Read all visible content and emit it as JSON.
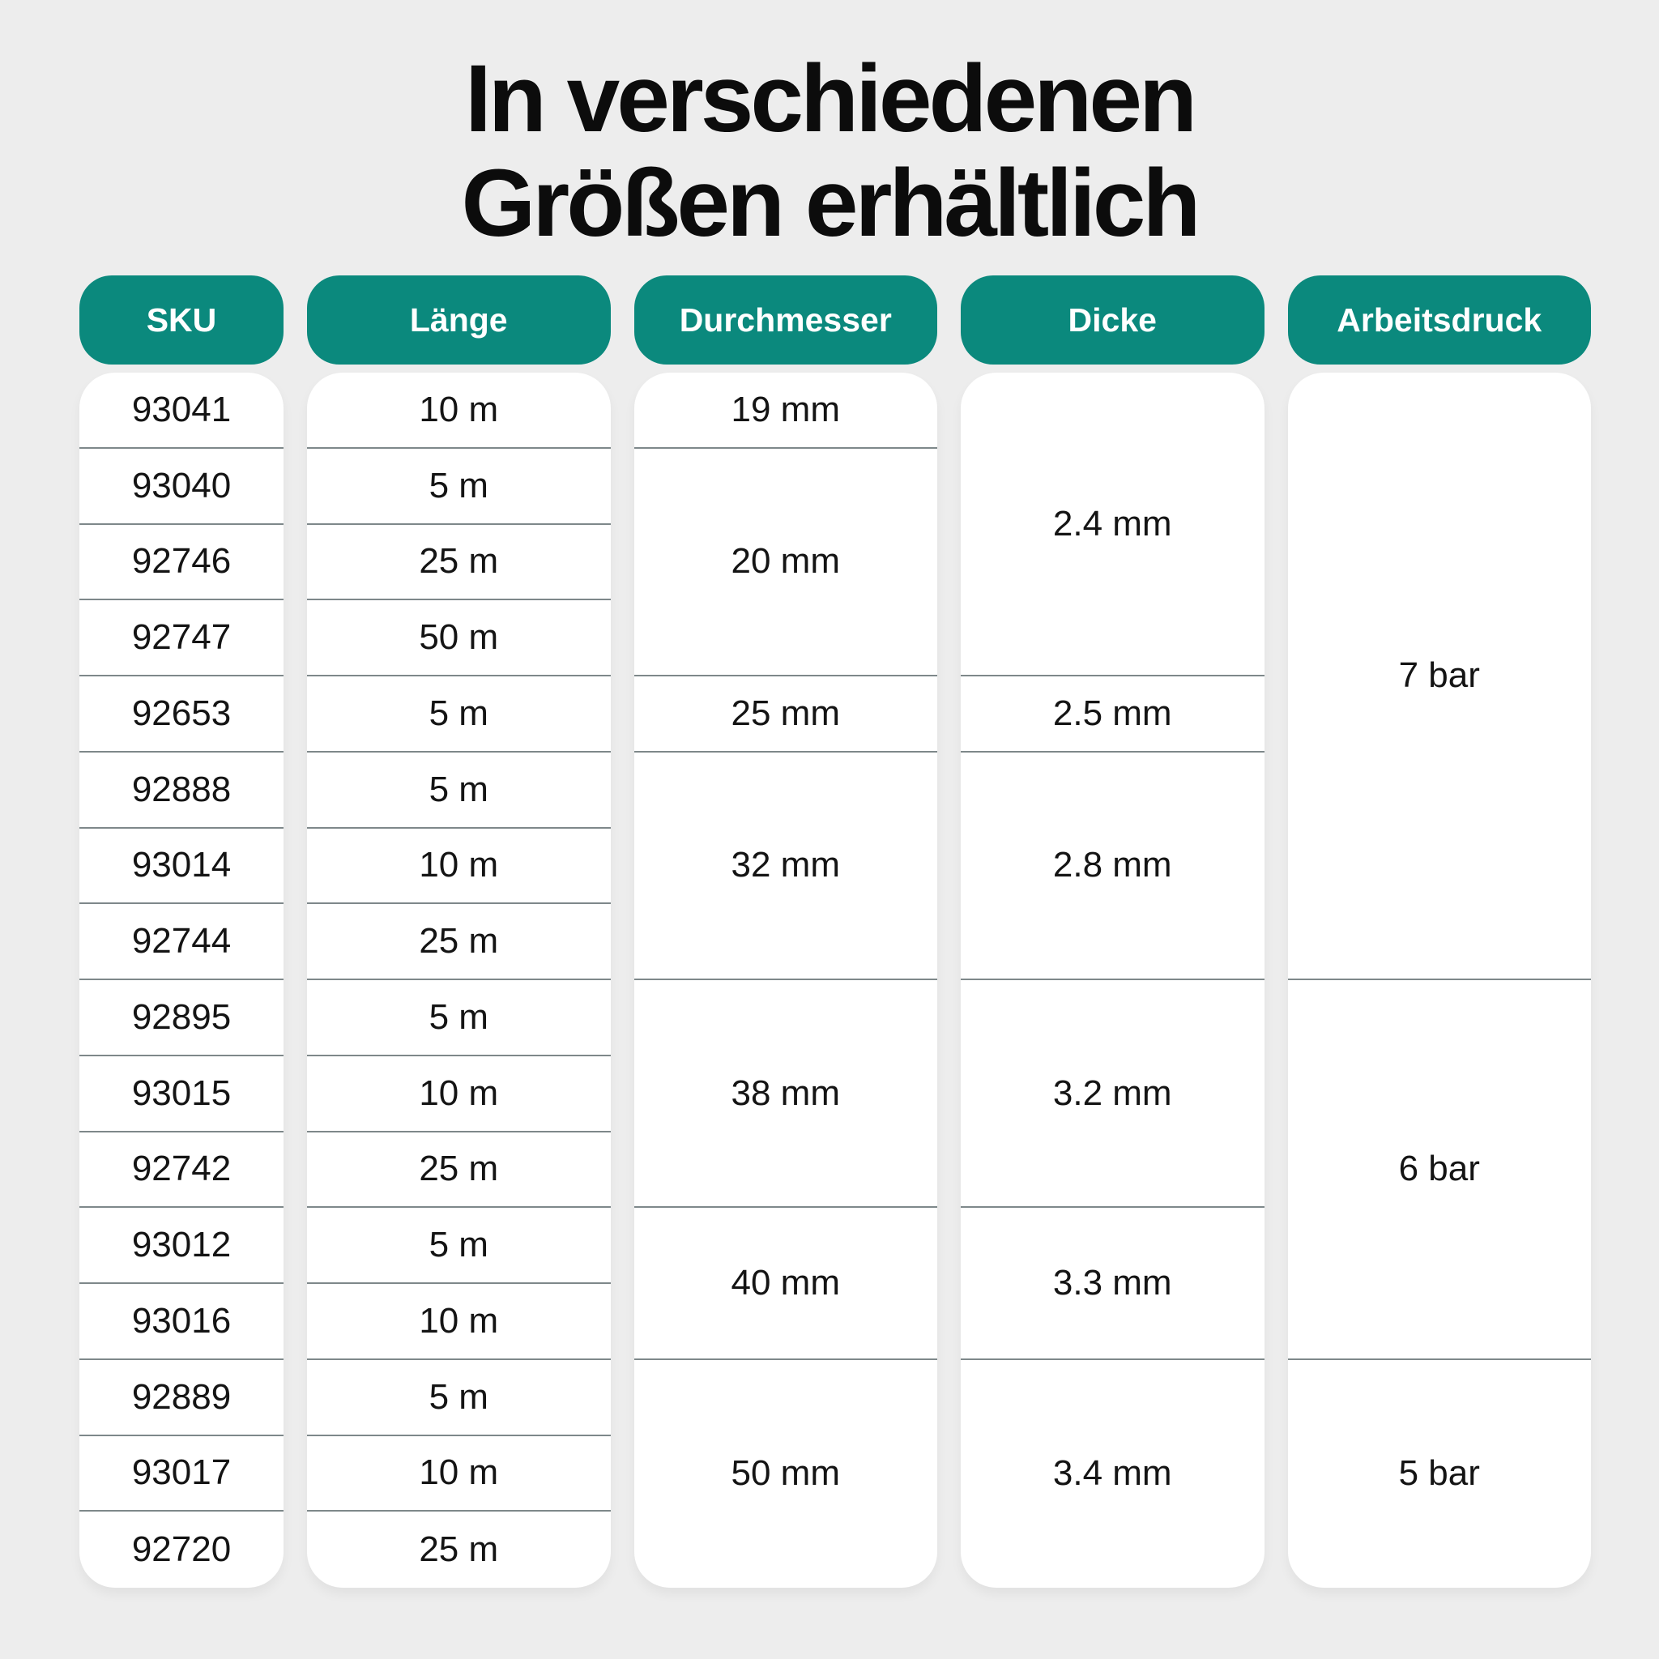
{
  "page": {
    "background_color": "#EDEDED",
    "title": {
      "line1": "In verschiedenen",
      "line2": "Größen erhältlich"
    }
  },
  "theme": {
    "accent_color": "#0B897D",
    "header_text_color": "#FFFFFF",
    "cell_text_color": "#141414",
    "divider_color": "#7E888A",
    "column_bg_color": "#FFFFFF"
  },
  "table": {
    "total_rows": 16,
    "columns": [
      {
        "header": "SKU",
        "cells": [
          {
            "label": "93041",
            "span": 1
          },
          {
            "label": "93040",
            "span": 1
          },
          {
            "label": "92746",
            "span": 1
          },
          {
            "label": "92747",
            "span": 1
          },
          {
            "label": "92653",
            "span": 1
          },
          {
            "label": "92888",
            "span": 1
          },
          {
            "label": "93014",
            "span": 1
          },
          {
            "label": "92744",
            "span": 1
          },
          {
            "label": "92895",
            "span": 1
          },
          {
            "label": "93015",
            "span": 1
          },
          {
            "label": "92742",
            "span": 1
          },
          {
            "label": "93012",
            "span": 1
          },
          {
            "label": "93016",
            "span": 1
          },
          {
            "label": "92889",
            "span": 1
          },
          {
            "label": "93017",
            "span": 1
          },
          {
            "label": "92720",
            "span": 1
          }
        ]
      },
      {
        "header": "Länge",
        "cells": [
          {
            "label": "10 m",
            "span": 1
          },
          {
            "label": "5 m",
            "span": 1
          },
          {
            "label": "25 m",
            "span": 1
          },
          {
            "label": "50 m",
            "span": 1
          },
          {
            "label": "5 m",
            "span": 1
          },
          {
            "label": "5 m",
            "span": 1
          },
          {
            "label": "10 m",
            "span": 1
          },
          {
            "label": "25 m",
            "span": 1
          },
          {
            "label": "5 m",
            "span": 1
          },
          {
            "label": "10 m",
            "span": 1
          },
          {
            "label": "25 m",
            "span": 1
          },
          {
            "label": "5 m",
            "span": 1
          },
          {
            "label": "10 m",
            "span": 1
          },
          {
            "label": "5 m",
            "span": 1
          },
          {
            "label": "10 m",
            "span": 1
          },
          {
            "label": "25 m",
            "span": 1
          }
        ]
      },
      {
        "header": "Durchmesser",
        "cells": [
          {
            "label": "19 mm",
            "span": 1
          },
          {
            "label": "20 mm",
            "span": 3
          },
          {
            "label": "25 mm",
            "span": 1
          },
          {
            "label": "32 mm",
            "span": 3
          },
          {
            "label": "38 mm",
            "span": 3
          },
          {
            "label": "40 mm",
            "span": 2
          },
          {
            "label": "50 mm",
            "span": 3
          }
        ]
      },
      {
        "header": "Dicke",
        "cells": [
          {
            "label": "2.4 mm",
            "span": 4
          },
          {
            "label": "2.5 mm",
            "span": 1
          },
          {
            "label": "2.8 mm",
            "span": 3
          },
          {
            "label": "3.2 mm",
            "span": 3
          },
          {
            "label": "3.3 mm",
            "span": 2
          },
          {
            "label": "3.4 mm",
            "span": 3
          }
        ]
      },
      {
        "header": "Arbeitsdruck",
        "cells": [
          {
            "label": "7 bar",
            "span": 8
          },
          {
            "label": "6 bar",
            "span": 5
          },
          {
            "label": "5 bar",
            "span": 3
          }
        ]
      }
    ]
  },
  "chart_data": {
    "type": "table",
    "title": "In verschiedenen Größen erhältlich",
    "columns": [
      "SKU",
      "Länge",
      "Durchmesser",
      "Dicke",
      "Arbeitsdruck"
    ],
    "rows": [
      [
        "93041",
        "10 m",
        "19 mm",
        "2.4 mm",
        "7 bar"
      ],
      [
        "93040",
        "5 m",
        "20 mm",
        "2.4 mm",
        "7 bar"
      ],
      [
        "92746",
        "25 m",
        "20 mm",
        "2.4 mm",
        "7 bar"
      ],
      [
        "92747",
        "50 m",
        "20 mm",
        "2.4 mm",
        "7 bar"
      ],
      [
        "92653",
        "5 m",
        "25 mm",
        "2.5 mm",
        "7 bar"
      ],
      [
        "92888",
        "5 m",
        "32 mm",
        "2.8 mm",
        "7 bar"
      ],
      [
        "93014",
        "10 m",
        "32 mm",
        "2.8 mm",
        "7 bar"
      ],
      [
        "92744",
        "25 m",
        "32 mm",
        "2.8 mm",
        "7 bar"
      ],
      [
        "92895",
        "5 m",
        "38 mm",
        "3.2 mm",
        "6 bar"
      ],
      [
        "93015",
        "10 m",
        "38 mm",
        "3.2 mm",
        "6 bar"
      ],
      [
        "92742",
        "25 m",
        "38 mm",
        "3.2 mm",
        "6 bar"
      ],
      [
        "93012",
        "5 m",
        "40 mm",
        "3.3 mm",
        "6 bar"
      ],
      [
        "93016",
        "10 m",
        "40 mm",
        "3.3 mm",
        "6 bar"
      ],
      [
        "92889",
        "5 m",
        "50 mm",
        "3.4 mm",
        "5 bar"
      ],
      [
        "93017",
        "10 m",
        "50 mm",
        "3.4 mm",
        "5 bar"
      ],
      [
        "92720",
        "25 m",
        "50 mm",
        "3.4 mm",
        "5 bar"
      ]
    ]
  }
}
